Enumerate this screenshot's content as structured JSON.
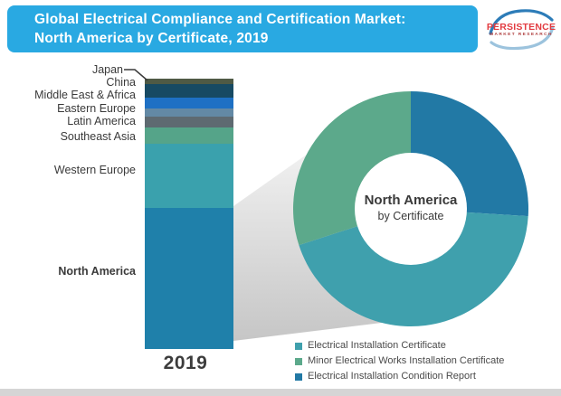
{
  "header": {
    "title_line1": "Global Electrical Compliance and Certification Market:",
    "title_line2": "North America by Certificate, 2019",
    "banner_color": "#29a9e2"
  },
  "logo": {
    "name": "PERSISTENCE",
    "subtitle": "MARKET RESEARCH",
    "name_color": "#e23b40",
    "subtitle_color": "#b04040",
    "swoosh_dark": "#2d7cb8",
    "swoosh_light": "#9cc3dd"
  },
  "year_label": "2019",
  "chart_data": [
    {
      "type": "bar",
      "subtype": "stacked-column",
      "title": "Global Electrical Compliance and Certification Market: North America by Certificate, 2019",
      "categories": [
        "2019"
      ],
      "unit": "share of world market, % (estimated from chart)",
      "series": [
        {
          "name": "Japan",
          "values": [
            2
          ],
          "color": "#4f5a45"
        },
        {
          "name": "China",
          "values": [
            5
          ],
          "color": "#174a63"
        },
        {
          "name": "Middle East & Africa",
          "values": [
            4
          ],
          "color": "#1e70c4"
        },
        {
          "name": "Eastern Europe",
          "values": [
            3
          ],
          "color": "#6389a5"
        },
        {
          "name": "Latin America",
          "values": [
            4
          ],
          "color": "#5e6a71"
        },
        {
          "name": "Southeast Asia",
          "values": [
            6
          ],
          "color": "#55a489"
        },
        {
          "name": "Western Europe",
          "values": [
            24
          ],
          "color": "#3aa1ad"
        },
        {
          "name": "North America",
          "values": [
            52
          ],
          "color": "#1f80aa"
        }
      ]
    },
    {
      "type": "pie",
      "subtype": "donut",
      "center_label_line1": "North America",
      "center_label_line2": "by Certificate",
      "start_angle_deg": 0,
      "unit": "% of North America market (estimated from chart)",
      "segments": [
        {
          "name": "Electrical Installation Condition Report",
          "value": 26,
          "color": "#2279a5"
        },
        {
          "name": "Electrical Installation Certificate",
          "value": 44,
          "color": "#3fa0ad"
        },
        {
          "name": "Minor Electrical Works Installation Certificate",
          "value": 30,
          "color": "#5ca98b"
        }
      ]
    }
  ],
  "legend": {
    "items": [
      {
        "label": "Electrical Installation Certificate",
        "color": "#3fa0ad"
      },
      {
        "label": "Minor Electrical Works Installation Certificate",
        "color": "#5ca98b"
      },
      {
        "label": "Electrical Installation Condition Report",
        "color": "#2279a5"
      }
    ]
  },
  "theme": {
    "footer_strip_color": "#d5d5d5",
    "funnel_gray_light": "#f5f5f5",
    "funnel_gray_dark": "#c6c6c6",
    "label_text_color": "#3a3a3a"
  }
}
